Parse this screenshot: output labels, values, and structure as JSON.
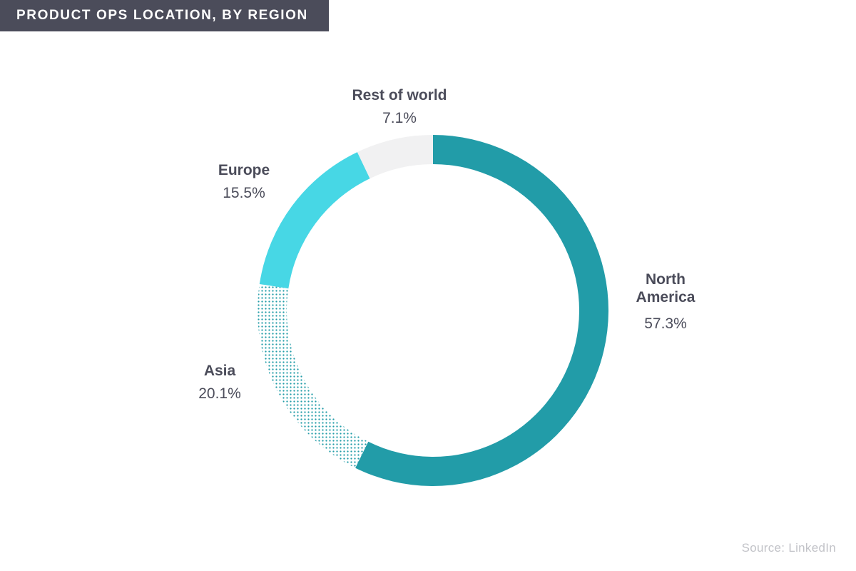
{
  "header": {
    "title": "PRODUCT OPS LOCATION, BY REGION"
  },
  "footer": {
    "source": "Source: LinkedIn"
  },
  "colors": {
    "title_background": "#4b4c5a",
    "label_text": "#4b4c5a",
    "source_text": "#c2c3c8"
  },
  "chart_data": {
    "type": "pie",
    "variant": "donut",
    "title": "PRODUCT OPS LOCATION, BY REGION",
    "value_unit": "%",
    "slices": [
      {
        "label_lines": [
          "North",
          "America"
        ],
        "value": 57.3,
        "value_label": "57.3%",
        "color": "#229ca8",
        "pattern": "solid"
      },
      {
        "label_lines": [
          "Asia"
        ],
        "value": 20.1,
        "value_label": "20.1%",
        "color": "#229ca8",
        "pattern": "dotted"
      },
      {
        "label_lines": [
          "Europe"
        ],
        "value": 15.5,
        "value_label": "15.5%",
        "color": "#47d7e5",
        "pattern": "solid"
      },
      {
        "label_lines": [
          "Rest of world"
        ],
        "value": 7.1,
        "value_label": "7.1%",
        "color": "#f1f1f2",
        "pattern": "solid"
      }
    ],
    "start": "top",
    "direction": "clockwise"
  }
}
